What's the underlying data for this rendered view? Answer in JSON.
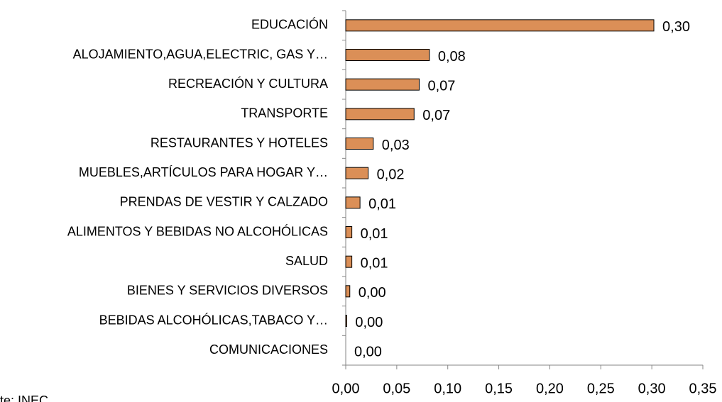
{
  "chart_data": {
    "type": "hbar",
    "categories": [
      "EDUCACIÓN",
      "ALOJAMIENTO,AGUA,ELECTRIC, GAS Y…",
      "RECREACIÓN Y CULTURA",
      "TRANSPORTE",
      "RESTAURANTES Y HOTELES",
      "MUEBLES,ARTÍCULOS PARA HOGAR Y…",
      "PRENDAS DE VESTIR Y CALZADO",
      "ALIMENTOS Y BEBIDAS NO ALCOHÓLICAS",
      "SALUD",
      "BIENES Y SERVICIOS DIVERSOS",
      "BEBIDAS ALCOHÓLICAS,TABACO Y…",
      "COMUNICACIONES"
    ],
    "values": [
      0.302,
      0.082,
      0.072,
      0.067,
      0.027,
      0.022,
      0.014,
      0.006,
      0.006,
      0.004,
      0.001,
      0.0
    ],
    "value_labels": [
      "0,30",
      "0,08",
      "0,07",
      "0,07",
      "0,03",
      "0,02",
      "0,01",
      "0,01",
      "0,01",
      "0,00",
      "0,00",
      "0,00"
    ],
    "color": "#db8f57",
    "xlim": [
      0,
      0.35
    ],
    "xticks": [
      {
        "value": 0,
        "label": "0,00"
      },
      {
        "value": 0.05,
        "label": "0,05"
      },
      {
        "value": 0.1,
        "label": "0,10"
      },
      {
        "value": 0.15,
        "label": "0,15"
      },
      {
        "value": 0.2,
        "label": "0,20"
      },
      {
        "value": 0.25,
        "label": "0,25"
      },
      {
        "value": 0.3,
        "label": "0,30"
      },
      {
        "value": 0.35,
        "label": "0,35"
      }
    ],
    "source": "te: INEC"
  }
}
